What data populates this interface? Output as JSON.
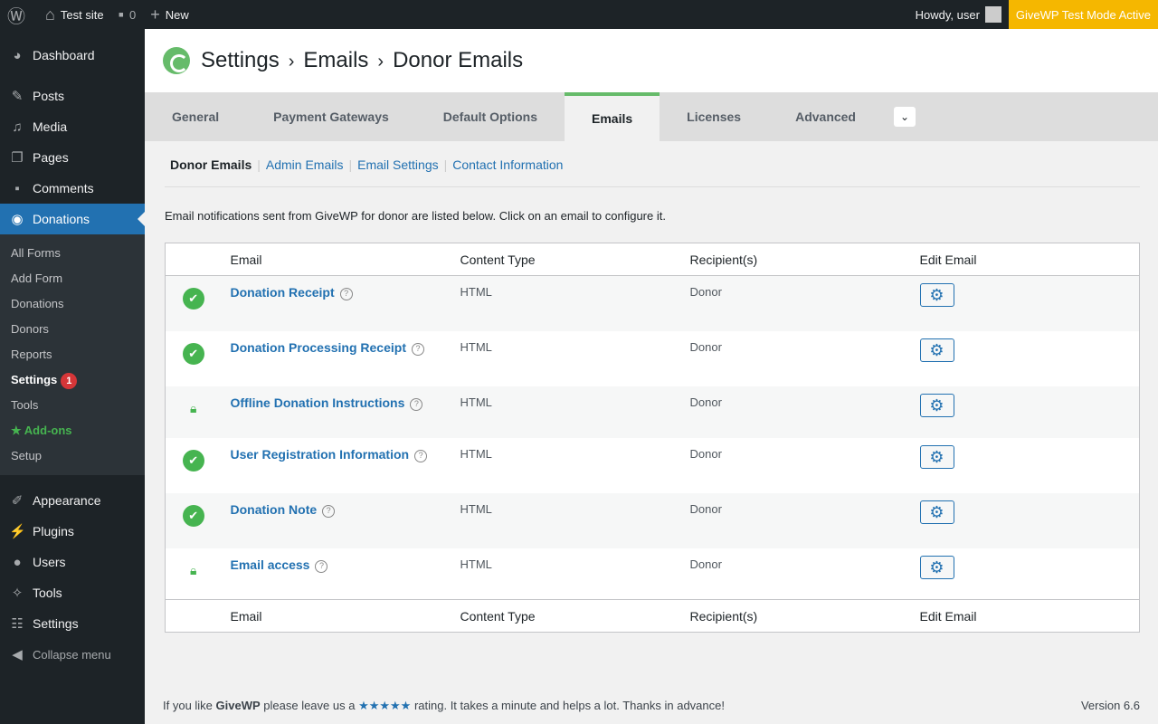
{
  "adminbar": {
    "site": "Test site",
    "comments": "0",
    "new": "New",
    "howdy": "Howdy, user",
    "test_mode": "GiveWP Test Mode Active"
  },
  "sidebar": {
    "items": [
      {
        "label": "Dashboard",
        "icon": "dashboard-icon"
      },
      {
        "label": "Posts",
        "icon": "pin-icon"
      },
      {
        "label": "Media",
        "icon": "media-icon"
      },
      {
        "label": "Pages",
        "icon": "pages-icon"
      },
      {
        "label": "Comments",
        "icon": "comment-icon"
      },
      {
        "label": "Donations",
        "icon": "givewp-icon"
      }
    ],
    "submenu": [
      "All Forms",
      "Add Form",
      "Donations",
      "Donors",
      "Reports",
      "Settings",
      "Tools",
      "Add-ons",
      "Setup"
    ],
    "settings_badge": "1",
    "items2": [
      {
        "label": "Appearance"
      },
      {
        "label": "Plugins"
      },
      {
        "label": "Users"
      },
      {
        "label": "Tools"
      },
      {
        "label": "Settings"
      }
    ],
    "collapse": "Collapse menu"
  },
  "header": {
    "crumbs": [
      "Settings",
      "Emails",
      "Donor Emails"
    ],
    "sep": "›"
  },
  "tabs": [
    "General",
    "Payment Gateways",
    "Default Options",
    "Emails",
    "Licenses",
    "Advanced"
  ],
  "active_tab": "Emails",
  "subnav": [
    "Donor Emails",
    "Admin Emails",
    "Email Settings",
    "Contact Information"
  ],
  "description": "Email notifications sent from GiveWP for donor are listed below. Click on an email to configure it.",
  "table": {
    "headers": [
      "Email",
      "Content Type",
      "Recipient(s)",
      "Edit Email"
    ],
    "rows": [
      {
        "status": "enabled",
        "name": "Donation Receipt",
        "type": "HTML",
        "recipient": "Donor"
      },
      {
        "status": "enabled",
        "name": "Donation Processing Receipt",
        "type": "HTML",
        "recipient": "Donor"
      },
      {
        "status": "locked",
        "name": "Offline Donation Instructions",
        "type": "HTML",
        "recipient": "Donor"
      },
      {
        "status": "enabled",
        "name": "User Registration Information",
        "type": "HTML",
        "recipient": "Donor"
      },
      {
        "status": "enabled",
        "name": "Donation Note",
        "type": "HTML",
        "recipient": "Donor"
      },
      {
        "status": "locked",
        "name": "Email access",
        "type": "HTML",
        "recipient": "Donor"
      }
    ]
  },
  "footer": {
    "pre": "If you like ",
    "brand": "GiveWP",
    "mid": " please leave us a ",
    "stars": "★★★★★",
    "post": " rating. It takes a minute and helps a lot. Thanks in advance!",
    "version": "Version 6.6"
  },
  "colors": {
    "accent": "#2271b1",
    "green": "#46b450",
    "test_mode": "#f5b700"
  }
}
